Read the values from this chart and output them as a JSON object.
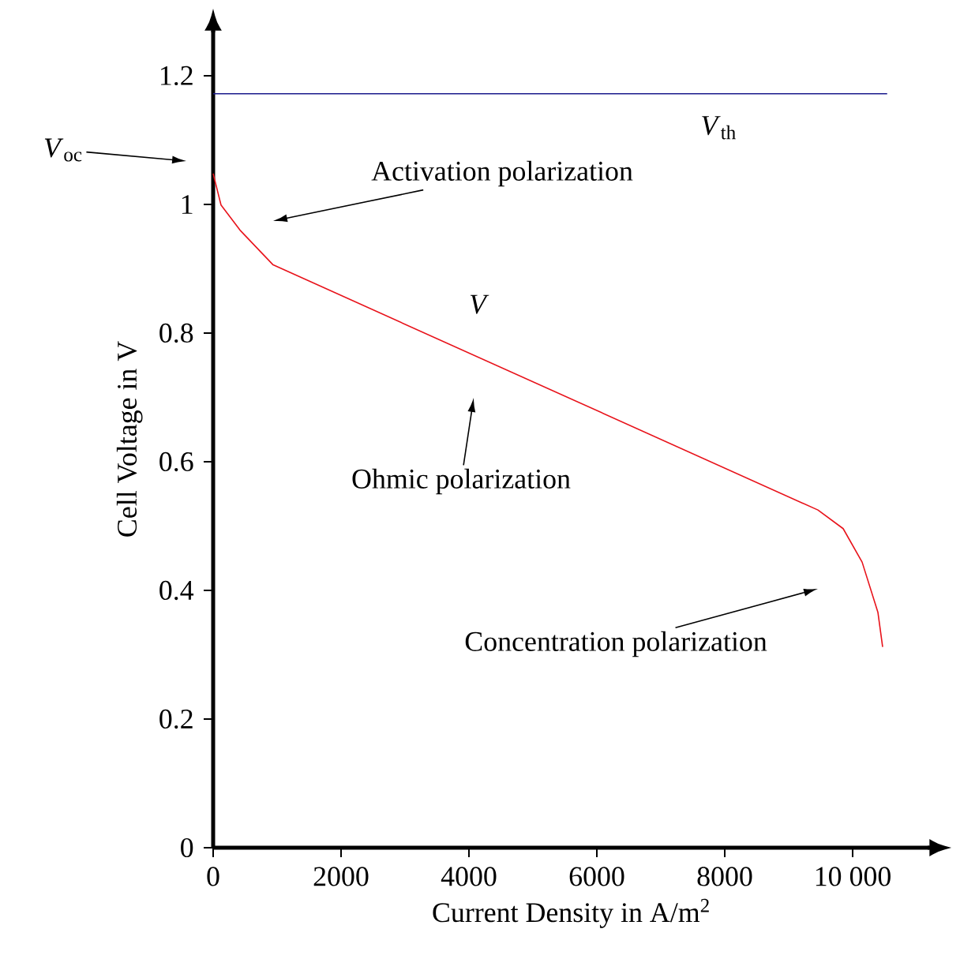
{
  "chart_data": {
    "type": "line",
    "xlabel": "Current Density in A/m$^{2}$",
    "ylabel": "Cell Voltage in V",
    "xlim": [
      0,
      11200
    ],
    "ylim": [
      0,
      1.27
    ],
    "xticks": [
      0,
      2000,
      4000,
      6000,
      8000,
      {
        "value": 10000,
        "label": "10 000"
      }
    ],
    "yticks": [
      0,
      0.2,
      0.4,
      0.6,
      0.8,
      1,
      1.2
    ],
    "series": [
      {
        "name": "*V*$_{th}$",
        "color": "#1a1a8c",
        "x": [
          0,
          10540
        ],
        "values": [
          1.172,
          1.172
        ]
      },
      {
        "name": "*V*",
        "color": "#e8121a",
        "x": [
          0,
          123,
          420,
          938,
          9457,
          9852,
          10148,
          10395,
          10469
        ],
        "values": [
          1.048,
          0.999,
          0.96,
          0.906,
          0.525,
          0.496,
          0.444,
          0.366,
          0.312
        ]
      }
    ],
    "annotations": [
      "*V*$_{oc}$",
      "Activation polarization",
      "Ohmic polarization",
      "Concentration polarization"
    ],
    "marker": "none",
    "line_style": "solid"
  }
}
